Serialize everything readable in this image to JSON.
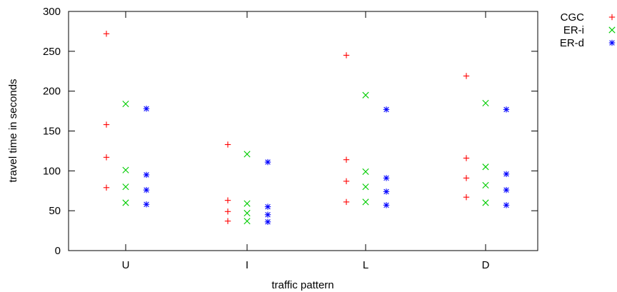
{
  "chart_data": {
    "type": "scatter",
    "title": "",
    "xlabel": "traffic pattern",
    "ylabel": "travel time in seconds",
    "categories": [
      "U",
      "I",
      "L",
      "D"
    ],
    "ylim": [
      0,
      300
    ],
    "yticks": [
      0,
      50,
      100,
      150,
      200,
      250,
      300
    ],
    "grid": false,
    "legend_position": "top-right outside",
    "series": [
      {
        "name": "CGC",
        "marker": "plus",
        "color": "#ff0000",
        "values": [
          [
            272,
            158,
            117,
            79
          ],
          [
            133,
            63,
            49,
            37
          ],
          [
            245,
            114,
            87,
            61
          ],
          [
            219,
            116,
            91,
            67
          ]
        ]
      },
      {
        "name": "ER-i",
        "marker": "cross",
        "color": "#00cc00",
        "values": [
          [
            184,
            101,
            80,
            60
          ],
          [
            121,
            59,
            47,
            37
          ],
          [
            195,
            99,
            80,
            61
          ],
          [
            185,
            105,
            82,
            60
          ]
        ]
      },
      {
        "name": "ER-d",
        "marker": "star",
        "color": "#0000ff",
        "values": [
          [
            178,
            95,
            76,
            58
          ],
          [
            111,
            55,
            45,
            36
          ],
          [
            177,
            91,
            74,
            57
          ],
          [
            177,
            96,
            76,
            57
          ]
        ]
      }
    ]
  }
}
